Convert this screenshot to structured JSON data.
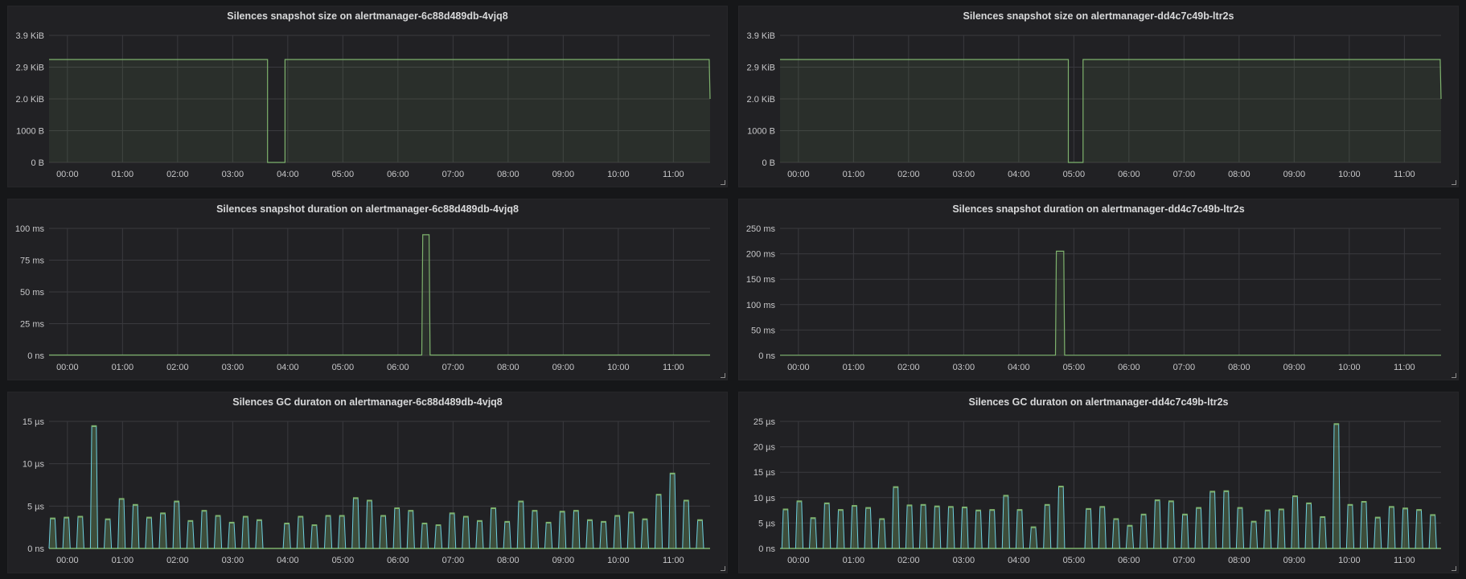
{
  "colors": {
    "background": "#161719",
    "panel": "#212124",
    "grid": "#3a3a3e",
    "line": "#7eb26d",
    "line_secondary": "#6ed0e0"
  },
  "x_axis": {
    "range_minutes": [
      -20,
      700
    ],
    "ticks_minutes": [
      0,
      60,
      120,
      180,
      240,
      300,
      360,
      420,
      480,
      540,
      600,
      660
    ],
    "tick_labels": [
      "00:00",
      "01:00",
      "02:00",
      "03:00",
      "04:00",
      "05:00",
      "06:00",
      "07:00",
      "08:00",
      "09:00",
      "10:00",
      "11:00"
    ]
  },
  "chart_data": [
    {
      "type": "line",
      "title": "Silences snapshot size on alertmanager-6c88d489db-4vjq8",
      "unit": "bytes",
      "ylim": [
        0,
        4000
      ],
      "y_ticks": [
        0,
        1000,
        2000,
        3000,
        4000
      ],
      "y_tick_labels": [
        "0 B",
        "1000 B",
        "2.0 KiB",
        "2.9 KiB",
        "3.9 KiB"
      ],
      "points": [
        [
          -20,
          3240
        ],
        [
          218,
          3240
        ],
        [
          218,
          0
        ],
        [
          237,
          0
        ],
        [
          237,
          3240
        ],
        [
          699,
          3240
        ],
        [
          700,
          2000
        ]
      ]
    },
    {
      "type": "line",
      "title": "Silences snapshot size on alertmanager-dd4c7c49b-ltr2s",
      "unit": "bytes",
      "ylim": [
        0,
        4000
      ],
      "y_ticks": [
        0,
        1000,
        2000,
        3000,
        4000
      ],
      "y_tick_labels": [
        "0 B",
        "1000 B",
        "2.0 KiB",
        "2.9 KiB",
        "3.9 KiB"
      ],
      "points": [
        [
          -20,
          3240
        ],
        [
          294,
          3240
        ],
        [
          294,
          0
        ],
        [
          310,
          0
        ],
        [
          310,
          3240
        ],
        [
          699,
          3240
        ],
        [
          700,
          2000
        ]
      ]
    },
    {
      "type": "line",
      "title": "Silences snapshot duration on alertmanager-6c88d489db-4vjq8",
      "unit": "ms",
      "ylim": [
        0,
        100
      ],
      "y_ticks": [
        0,
        25,
        50,
        75,
        100
      ],
      "y_tick_labels": [
        "0 ns",
        "25 ms",
        "50 ms",
        "75 ms",
        "100 ms"
      ],
      "points": [
        [
          -20,
          0.3
        ],
        [
          386,
          0.3
        ],
        [
          387,
          95
        ],
        [
          394,
          95
        ],
        [
          395,
          0.3
        ],
        [
          700,
          0.3
        ]
      ]
    },
    {
      "type": "line",
      "title": "Silences snapshot duration on alertmanager-dd4c7c49b-ltr2s",
      "unit": "ms",
      "ylim": [
        0,
        250
      ],
      "y_ticks": [
        0,
        50,
        100,
        150,
        200,
        250
      ],
      "y_tick_labels": [
        "0 ns",
        "50 ms",
        "100 ms",
        "150 ms",
        "200 ms",
        "250 ms"
      ],
      "points": [
        [
          -20,
          0.5
        ],
        [
          280,
          0.5
        ],
        [
          281,
          205
        ],
        [
          289,
          205
        ],
        [
          290,
          0.5
        ],
        [
          700,
          0.5
        ]
      ]
    },
    {
      "type": "pulses",
      "title": "Silences GC duraton on alertmanager-6c88d489db-4vjq8",
      "unit": "µs",
      "ylim": [
        0,
        15
      ],
      "y_ticks": [
        0,
        5,
        10,
        15
      ],
      "y_tick_labels": [
        "0 ns",
        "5 µs",
        "10 µs",
        "15 µs"
      ],
      "start_minute": -20,
      "interval_minutes": 15,
      "values": [
        3.5,
        3.6,
        3.7,
        14.4,
        3.4,
        5.8,
        5.1,
        3.6,
        4.1,
        5.5,
        3.2,
        4.4,
        3.8,
        3.0,
        3.7,
        3.3,
        0,
        2.9,
        3.7,
        2.7,
        3.8,
        3.8,
        5.9,
        5.6,
        3.8,
        4.7,
        4.4,
        2.9,
        2.7,
        4.1,
        3.7,
        3.2,
        4.7,
        3.1,
        5.5,
        4.4,
        3.0,
        4.3,
        4.4,
        3.3,
        3.1,
        3.8,
        4.2,
        3.4,
        6.3,
        8.8,
        5.6,
        3.3
      ]
    },
    {
      "type": "pulses",
      "title": "Silences GC duraton on alertmanager-dd4c7c49b-ltr2s",
      "unit": "µs",
      "ylim": [
        0,
        25
      ],
      "y_ticks": [
        0,
        5,
        10,
        15,
        20,
        25
      ],
      "y_tick_labels": [
        "0 ns",
        "5 µs",
        "10 µs",
        "15 µs",
        "20 µs",
        "25 µs"
      ],
      "start_minute": -18,
      "interval_minutes": 15,
      "values": [
        7.6,
        9.2,
        5.9,
        8.8,
        7.5,
        8.3,
        7.9,
        5.7,
        12.0,
        8.4,
        8.5,
        8.2,
        8.1,
        8.0,
        7.4,
        7.5,
        10.3,
        7.5,
        4.1,
        8.5,
        12.1,
        0,
        7.7,
        8.1,
        5.7,
        4.4,
        6.6,
        9.4,
        9.2,
        6.6,
        7.9,
        11.1,
        11.2,
        7.9,
        5.2,
        7.4,
        7.6,
        10.2,
        8.8,
        6.1,
        24.4,
        8.5,
        9.1,
        6.0,
        8.1,
        7.8,
        7.5,
        6.5
      ]
    }
  ]
}
